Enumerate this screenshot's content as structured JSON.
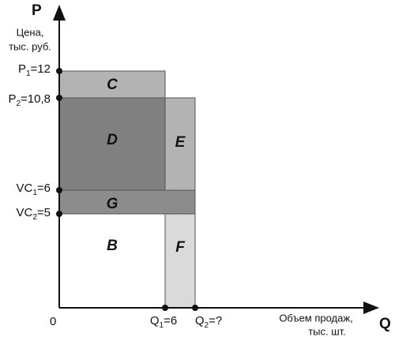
{
  "axes": {
    "y_symbol": "P",
    "y_label": [
      "Цена,",
      "тыс. руб."
    ],
    "x_symbol": "Q",
    "x_label": [
      "Объем продаж,",
      "тыс. шт."
    ],
    "origin": "0"
  },
  "y_marks": [
    {
      "symbol": "P",
      "sub": "1",
      "rest": "=12"
    },
    {
      "symbol": "P",
      "sub": "2",
      "rest": "=10,8"
    },
    {
      "symbol": "VC",
      "sub": "1",
      "rest": "=6"
    },
    {
      "symbol": "VC",
      "sub": "2",
      "rest": "=5"
    }
  ],
  "x_marks": [
    {
      "symbol": "Q",
      "sub": "1",
      "rest": "=6"
    },
    {
      "symbol": "Q",
      "sub": "2",
      "rest": "=?"
    }
  ],
  "regions": {
    "c": "C",
    "d": "D",
    "e": "E",
    "g": "G",
    "b": "B",
    "f": "F"
  }
}
